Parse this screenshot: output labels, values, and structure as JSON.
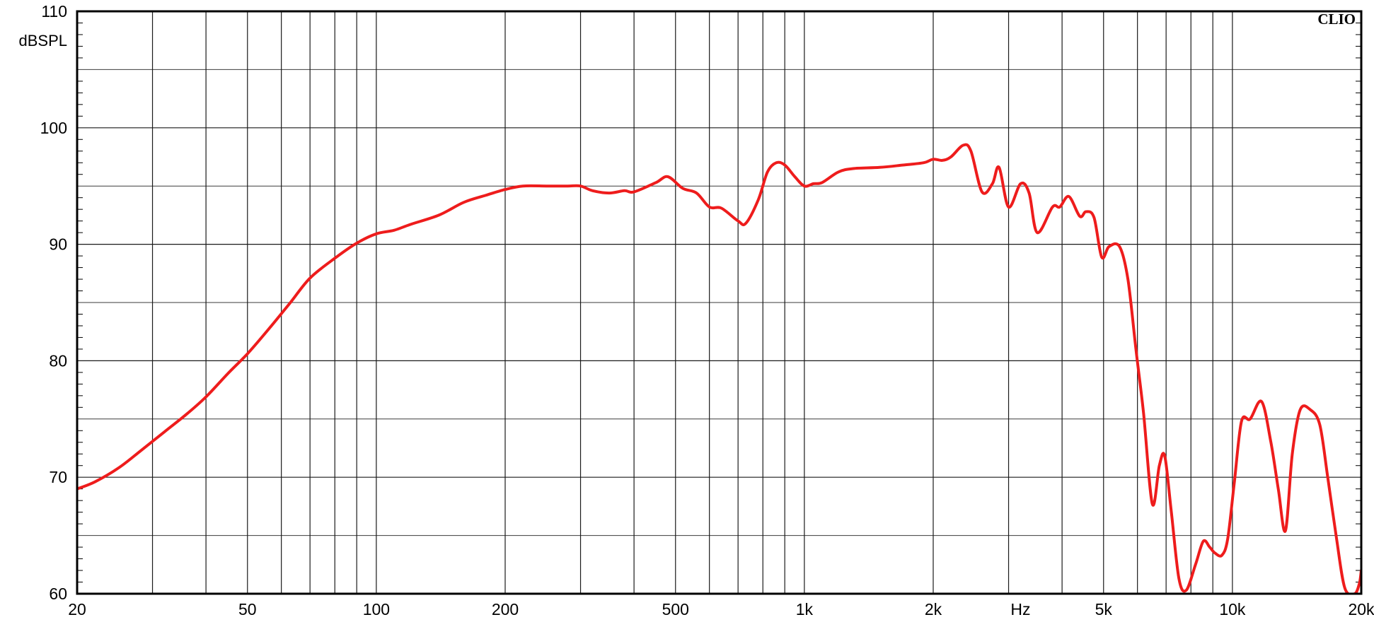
{
  "chart_data": {
    "type": "line",
    "brand": "CLIO",
    "ylabel": "dBSPL",
    "xlabel": "Hz",
    "x_scale": "log",
    "xlim": [
      20,
      20000
    ],
    "ylim": [
      60,
      110
    ],
    "grid": true,
    "line_color": "#ee1c1c",
    "grid_color": "#1a1a1a",
    "y_ticks": [
      {
        "value": 110,
        "label": "110"
      },
      {
        "value": 100,
        "label": "100"
      },
      {
        "value": 90,
        "label": "90"
      },
      {
        "value": 80,
        "label": "80"
      },
      {
        "value": 70,
        "label": "70"
      },
      {
        "value": 60,
        "label": "60"
      }
    ],
    "y_minor_gridlines": [
      105,
      95,
      85,
      75,
      65
    ],
    "x_ticks": [
      {
        "value": 20,
        "label": "20"
      },
      {
        "value": 50,
        "label": "50"
      },
      {
        "value": 100,
        "label": "100"
      },
      {
        "value": 200,
        "label": "200"
      },
      {
        "value": 500,
        "label": "500"
      },
      {
        "value": 1000,
        "label": "1k"
      },
      {
        "value": 2000,
        "label": "2k"
      },
      {
        "value": 5000,
        "label": "5k"
      },
      {
        "value": 10000,
        "label": "10k"
      },
      {
        "value": 20000,
        "label": "20k"
      }
    ],
    "series": [
      {
        "x": [
          20,
          22,
          25,
          28,
          32,
          36,
          40,
          45,
          50,
          56,
          63,
          70,
          80,
          90,
          100,
          110,
          120,
          140,
          160,
          180,
          200,
          220,
          250,
          280,
          300,
          320,
          350,
          380,
          400,
          450,
          480,
          520,
          560,
          600,
          640,
          700,
          730,
          780,
          820,
          860,
          900,
          950,
          1000,
          1050,
          1100,
          1200,
          1300,
          1500,
          1700,
          1900,
          2000,
          2100,
          2200,
          2350,
          2450,
          2600,
          2750,
          2850,
          3000,
          3200,
          3350,
          3500,
          3800,
          3950,
          4150,
          4400,
          4550,
          4750,
          4950,
          5150,
          5450,
          5700,
          5950,
          6200,
          6500,
          6750,
          6950,
          7200,
          7500,
          7800,
          8200,
          8550,
          8850,
          9100,
          9450,
          9750,
          10100,
          10500,
          11000,
          11700,
          12300,
          12800,
          13300,
          13800,
          14400,
          15200,
          16000,
          16700,
          17500,
          18300,
          19300,
          19800,
          20000
        ],
        "y": [
          69,
          69.6,
          70.8,
          72.2,
          73.9,
          75.4,
          76.9,
          78.9,
          80.6,
          82.7,
          85,
          87.1,
          88.8,
          90.1,
          90.9,
          91.2,
          91.7,
          92.5,
          93.6,
          94.2,
          94.7,
          95.0,
          95.0,
          95.0,
          95.0,
          94.6,
          94.4,
          94.6,
          94.5,
          95.3,
          95.8,
          94.8,
          94.4,
          93.2,
          93.1,
          92.0,
          91.8,
          93.8,
          96.2,
          97.0,
          96.8,
          95.8,
          95.0,
          95.2,
          95.3,
          96.2,
          96.5,
          96.6,
          96.8,
          97.0,
          97.3,
          97.2,
          97.5,
          98.5,
          98.0,
          94.5,
          95.2,
          96.6,
          93.2,
          95.2,
          94.4,
          91.0,
          93.2,
          93.2,
          94.1,
          92.4,
          92.8,
          92.3,
          88.9,
          89.8,
          89.8,
          87.0,
          81.0,
          75.5,
          67.7,
          71.0,
          71.8,
          67.0,
          61.3,
          60.3,
          62.5,
          64.5,
          64.0,
          63.5,
          63.3,
          64.7,
          69.5,
          74.8,
          75.0,
          76.5,
          73.0,
          69.0,
          65.4,
          72.0,
          75.8,
          75.8,
          74.5,
          70.0,
          64.8,
          60.5,
          60.0,
          60.9,
          62.0
        ]
      }
    ]
  }
}
